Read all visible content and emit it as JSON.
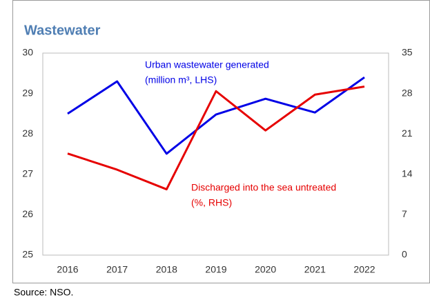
{
  "chart_data": {
    "type": "line",
    "title": "Wastewater",
    "source": "Source: NSO.",
    "x": [
      "2016",
      "2017",
      "2018",
      "2019",
      "2020",
      "2021",
      "2022"
    ],
    "series": [
      {
        "name": [
          "Urban wastewater generated",
          "(million m³, LHS)"
        ],
        "color": "#0000e6",
        "axis": "y",
        "values": [
          28.5,
          29.3,
          27.51,
          28.48,
          28.87,
          28.53,
          29.4
        ]
      },
      {
        "name": [
          "Discharged into the sea untreated",
          "(%, RHS)"
        ],
        "color": "#e60000",
        "axis": "y2",
        "values": [
          17.6,
          14.8,
          11.4,
          28.4,
          21.6,
          27.8,
          29.2
        ]
      }
    ],
    "ylim": [
      25,
      30
    ],
    "yticks": [
      25,
      26,
      27,
      28,
      29,
      30
    ],
    "y2lim": [
      0,
      35
    ],
    "y2ticks": [
      0,
      7,
      14,
      21,
      28,
      35
    ]
  }
}
